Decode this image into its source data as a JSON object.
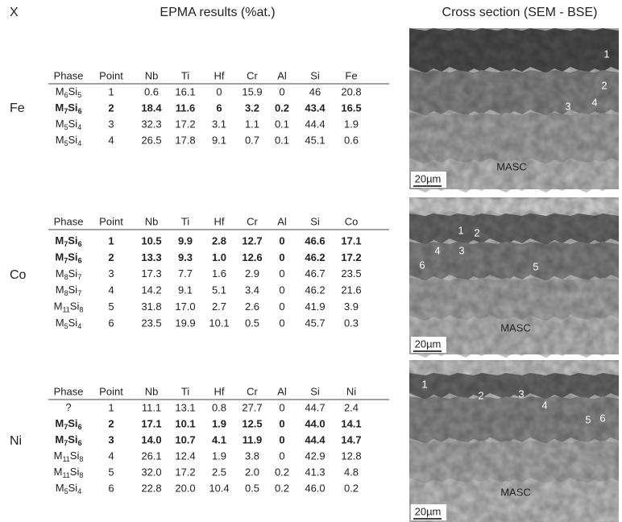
{
  "header": {
    "corner": "X",
    "table_title": "EPMA results (%at.)",
    "image_title": "Cross section (SEM - BSE)"
  },
  "panels": [
    {
      "label": "Fe",
      "headers": [
        "Phase",
        "Point",
        "Nb",
        "Ti",
        "Hf",
        "Cr",
        "Al",
        "Si",
        "Fe"
      ],
      "rows": [
        {
          "phase": [
            "M",
            "6",
            "Si",
            "5"
          ],
          "cells": [
            "1",
            "0.6",
            "16.1",
            "0",
            "15.9",
            "0",
            "46",
            "20.8"
          ],
          "bold": false
        },
        {
          "phase": [
            "M",
            "7",
            "Si",
            "6"
          ],
          "cells": [
            "2",
            "18.4",
            "11.6",
            "6",
            "3.2",
            "0.2",
            "43.4",
            "16.5"
          ],
          "bold": true
        },
        {
          "phase": [
            "M",
            "5",
            "Si",
            "4"
          ],
          "cells": [
            "3",
            "32.3",
            "17.2",
            "3.1",
            "1.1",
            "0.1",
            "44.4",
            "1.9"
          ],
          "bold": false
        },
        {
          "phase": [
            "M",
            "5",
            "Si",
            "4"
          ],
          "cells": [
            "4",
            "26.5",
            "17.8",
            "9.1",
            "0.7",
            "0.1",
            "45.1",
            "0.6"
          ],
          "bold": false
        }
      ],
      "image": {
        "points": [
          "1",
          "2",
          "3",
          "4"
        ],
        "scale": "20µm",
        "matrix": "MASC"
      }
    },
    {
      "label": "Co",
      "headers": [
        "Phase",
        "Point",
        "Nb",
        "Ti",
        "Hf",
        "Cr",
        "Al",
        "Si",
        "Co"
      ],
      "rows": [
        {
          "phase": [
            "M",
            "7",
            "Si",
            "6"
          ],
          "cells": [
            "1",
            "10.5",
            "9.9",
            "2.8",
            "12.7",
            "0",
            "46.6",
            "17.1"
          ],
          "bold": true
        },
        {
          "phase": [
            "M",
            "7",
            "Si",
            "6"
          ],
          "cells": [
            "2",
            "13.3",
            "9.3",
            "1.0",
            "12.6",
            "0",
            "46.2",
            "17.2"
          ],
          "bold": true
        },
        {
          "phase": [
            "M",
            "8",
            "Si",
            "7"
          ],
          "cells": [
            "3",
            "17.3",
            "7.7",
            "1.6",
            "2.9",
            "0",
            "46.7",
            "23.5"
          ],
          "bold": false
        },
        {
          "phase": [
            "M",
            "8",
            "Si",
            "7"
          ],
          "cells": [
            "4",
            "14.2",
            "9.1",
            "5.1",
            "3.4",
            "0",
            "46.2",
            "21.6"
          ],
          "bold": false
        },
        {
          "phase": [
            "M",
            "11",
            "Si",
            "8"
          ],
          "cells": [
            "5",
            "31.8",
            "17.0",
            "2.7",
            "2.6",
            "0",
            "41.9",
            "3.9"
          ],
          "bold": false
        },
        {
          "phase": [
            "M",
            "5",
            "Si",
            "4"
          ],
          "cells": [
            "6",
            "23.5",
            "19.9",
            "10.1",
            "0.5",
            "0",
            "45.7",
            "0.3"
          ],
          "bold": false
        }
      ],
      "image": {
        "points": [
          "1",
          "2",
          "3",
          "4",
          "5",
          "6"
        ],
        "scale": "20µm",
        "matrix": "MASC"
      }
    },
    {
      "label": "Ni",
      "headers": [
        "Phase",
        "Point",
        "Nb",
        "Ti",
        "Hf",
        "Cr",
        "Al",
        "Si",
        "Ni"
      ],
      "rows": [
        {
          "phase": [
            "?"
          ],
          "cells": [
            "1",
            "11.1",
            "13.1",
            "0.8",
            "27.7",
            "0",
            "44.7",
            "2.4"
          ],
          "bold": false
        },
        {
          "phase": [
            "M",
            "7",
            "Si",
            "6"
          ],
          "cells": [
            "2",
            "17.1",
            "10.1",
            "1.9",
            "12.5",
            "0",
            "44.0",
            "14.1"
          ],
          "bold": true
        },
        {
          "phase": [
            "M",
            "7",
            "Si",
            "6"
          ],
          "cells": [
            "3",
            "14.0",
            "10.7",
            "4.1",
            "11.9",
            "0",
            "44.4",
            "14.7"
          ],
          "bold": true
        },
        {
          "phase": [
            "M",
            "11",
            "Si",
            "8"
          ],
          "cells": [
            "4",
            "26.1",
            "12.4",
            "1.9",
            "3.8",
            "0",
            "42.9",
            "12.8"
          ],
          "bold": false
        },
        {
          "phase": [
            "M",
            "11",
            "Si",
            "8"
          ],
          "cells": [
            "5",
            "32.0",
            "17.2",
            "2.5",
            "2.0",
            "0.2",
            "41.3",
            "4.8"
          ],
          "bold": false
        },
        {
          "phase": [
            "M",
            "5",
            "Si",
            "4"
          ],
          "cells": [
            "6",
            "22.8",
            "20.0",
            "10.4",
            "0.5",
            "0.2",
            "46.0",
            "0.2"
          ],
          "bold": false
        }
      ],
      "image": {
        "points": [
          "1",
          "2",
          "3",
          "4",
          "5",
          "6"
        ],
        "scale": "20µm",
        "matrix": "MASC"
      }
    }
  ]
}
